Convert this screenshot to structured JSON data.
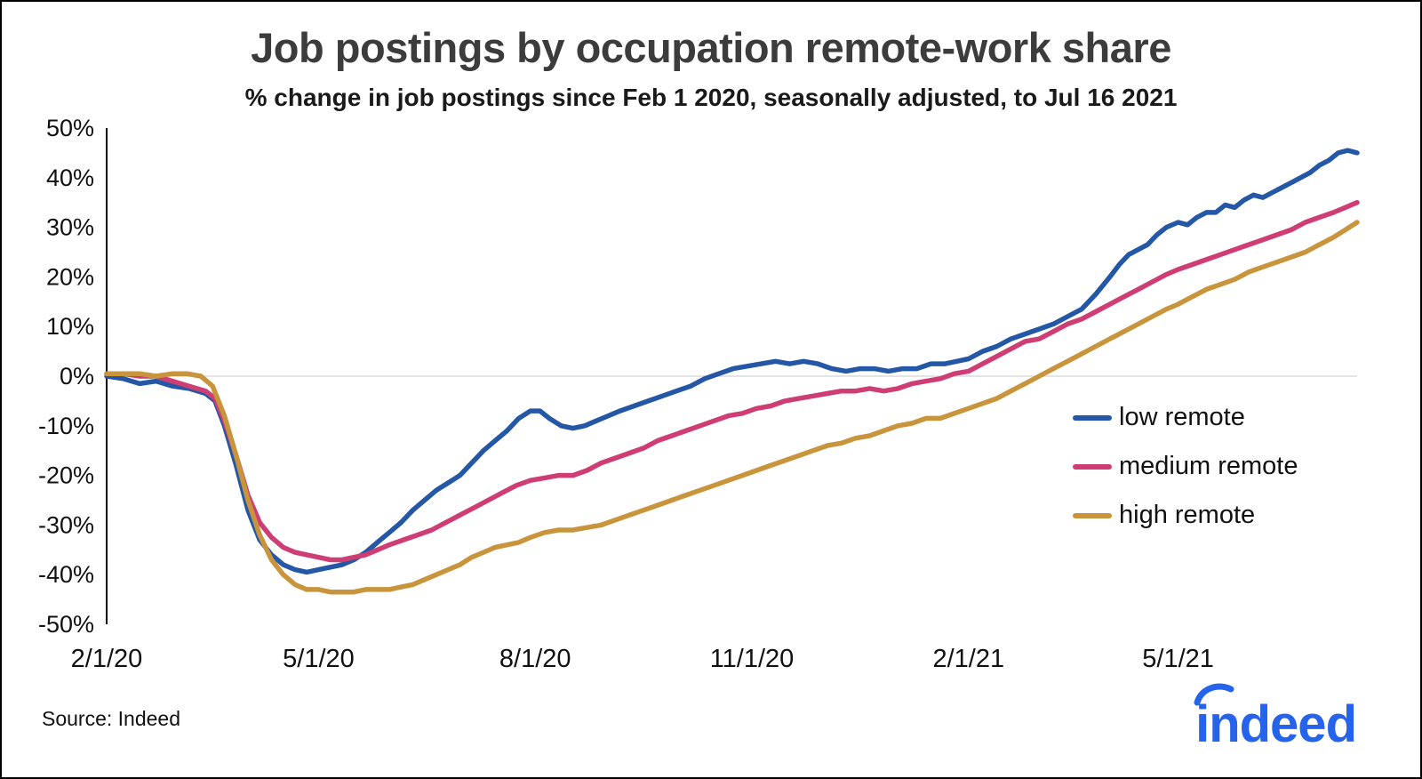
{
  "header": {
    "title": "Job postings by occupation remote-work share",
    "subtitle": "% change in job postings since Feb 1 2020, seasonally adjusted, to Jul 16 2021"
  },
  "chart_data": {
    "type": "line",
    "title": "Job postings by occupation remote-work share",
    "subtitle": "% change in job postings since Feb 1 2020, seasonally adjusted, to Jul 16 2021",
    "xlabel": "",
    "ylabel": "",
    "x_unit": "days since 2020-02-01",
    "xlim": [
      0,
      531
    ],
    "ylim": [
      -50,
      50
    ],
    "grid": "horizontal zero line only",
    "legend_position": "middle-right",
    "x_ticks": [
      {
        "value": 0,
        "label": "2/1/20"
      },
      {
        "value": 90,
        "label": "5/1/20"
      },
      {
        "value": 182,
        "label": "8/1/20"
      },
      {
        "value": 274,
        "label": "11/1/20"
      },
      {
        "value": 366,
        "label": "2/1/21"
      },
      {
        "value": 455,
        "label": "5/1/21"
      }
    ],
    "y_ticks": [
      {
        "value": 50,
        "label": "50%"
      },
      {
        "value": 40,
        "label": "40%"
      },
      {
        "value": 30,
        "label": "30%"
      },
      {
        "value": 20,
        "label": "20%"
      },
      {
        "value": 10,
        "label": "10%"
      },
      {
        "value": 0,
        "label": "0%"
      },
      {
        "value": -10,
        "label": "-10%"
      },
      {
        "value": -20,
        "label": "-20%"
      },
      {
        "value": -30,
        "label": "-30%"
      },
      {
        "value": -40,
        "label": "-40%"
      },
      {
        "value": -50,
        "label": "-50%"
      }
    ],
    "series": [
      {
        "name": "low remote",
        "color": "#2557a7",
        "points": [
          [
            0,
            0
          ],
          [
            7,
            -0.5
          ],
          [
            14,
            -1.5
          ],
          [
            21,
            -1
          ],
          [
            28,
            -2
          ],
          [
            35,
            -2.5
          ],
          [
            42,
            -3.5
          ],
          [
            46,
            -5
          ],
          [
            50,
            -10
          ],
          [
            55,
            -18
          ],
          [
            60,
            -27
          ],
          [
            65,
            -33
          ],
          [
            70,
            -36
          ],
          [
            75,
            -38
          ],
          [
            80,
            -39
          ],
          [
            85,
            -39.5
          ],
          [
            90,
            -39
          ],
          [
            95,
            -38.5
          ],
          [
            100,
            -38
          ],
          [
            105,
            -37
          ],
          [
            110,
            -35.5
          ],
          [
            115,
            -33.5
          ],
          [
            120,
            -31.5
          ],
          [
            125,
            -29.5
          ],
          [
            130,
            -27
          ],
          [
            135,
            -25
          ],
          [
            140,
            -23
          ],
          [
            145,
            -21.5
          ],
          [
            150,
            -20
          ],
          [
            155,
            -17.5
          ],
          [
            160,
            -15
          ],
          [
            165,
            -13
          ],
          [
            170,
            -11
          ],
          [
            175,
            -8.5
          ],
          [
            180,
            -7
          ],
          [
            184,
            -7
          ],
          [
            188,
            -8.5
          ],
          [
            193,
            -10
          ],
          [
            198,
            -10.5
          ],
          [
            203,
            -10
          ],
          [
            208,
            -9
          ],
          [
            213,
            -8
          ],
          [
            218,
            -7
          ],
          [
            224,
            -6
          ],
          [
            230,
            -5
          ],
          [
            236,
            -4
          ],
          [
            242,
            -3
          ],
          [
            248,
            -2
          ],
          [
            254,
            -0.5
          ],
          [
            260,
            0.5
          ],
          [
            266,
            1.5
          ],
          [
            272,
            2
          ],
          [
            278,
            2.5
          ],
          [
            284,
            3
          ],
          [
            290,
            2.5
          ],
          [
            296,
            3
          ],
          [
            302,
            2.5
          ],
          [
            308,
            1.5
          ],
          [
            314,
            1
          ],
          [
            320,
            1.5
          ],
          [
            326,
            1.5
          ],
          [
            332,
            1
          ],
          [
            338,
            1.5
          ],
          [
            344,
            1.5
          ],
          [
            350,
            2.5
          ],
          [
            356,
            2.5
          ],
          [
            361,
            3
          ],
          [
            366,
            3.5
          ],
          [
            372,
            5
          ],
          [
            378,
            6
          ],
          [
            384,
            7.5
          ],
          [
            390,
            8.5
          ],
          [
            396,
            9.5
          ],
          [
            402,
            10.5
          ],
          [
            408,
            12
          ],
          [
            414,
            13.5
          ],
          [
            420,
            16.5
          ],
          [
            426,
            20
          ],
          [
            430,
            22.5
          ],
          [
            434,
            24.5
          ],
          [
            438,
            25.5
          ],
          [
            442,
            26.5
          ],
          [
            446,
            28.5
          ],
          [
            450,
            30
          ],
          [
            455,
            31
          ],
          [
            459,
            30.5
          ],
          [
            463,
            32
          ],
          [
            467,
            33
          ],
          [
            471,
            33
          ],
          [
            475,
            34.5
          ],
          [
            479,
            34
          ],
          [
            483,
            35.5
          ],
          [
            487,
            36.5
          ],
          [
            491,
            36
          ],
          [
            495,
            37
          ],
          [
            499,
            38
          ],
          [
            503,
            39
          ],
          [
            507,
            40
          ],
          [
            511,
            41
          ],
          [
            515,
            42.5
          ],
          [
            519,
            43.5
          ],
          [
            523,
            45
          ],
          [
            527,
            45.5
          ],
          [
            531,
            45
          ]
        ]
      },
      {
        "name": "medium remote",
        "color": "#ce3d73",
        "points": [
          [
            0,
            0.5
          ],
          [
            7,
            0.5
          ],
          [
            14,
            0
          ],
          [
            21,
            0
          ],
          [
            28,
            -1
          ],
          [
            35,
            -2
          ],
          [
            42,
            -3
          ],
          [
            46,
            -4.5
          ],
          [
            50,
            -9
          ],
          [
            55,
            -16
          ],
          [
            60,
            -24
          ],
          [
            65,
            -29.5
          ],
          [
            70,
            -32.5
          ],
          [
            75,
            -34.5
          ],
          [
            80,
            -35.5
          ],
          [
            85,
            -36
          ],
          [
            90,
            -36.5
          ],
          [
            95,
            -37
          ],
          [
            100,
            -37
          ],
          [
            105,
            -36.5
          ],
          [
            110,
            -36
          ],
          [
            115,
            -35
          ],
          [
            120,
            -34
          ],
          [
            126,
            -33
          ],
          [
            132,
            -32
          ],
          [
            138,
            -31
          ],
          [
            144,
            -29.5
          ],
          [
            150,
            -28
          ],
          [
            156,
            -26.5
          ],
          [
            162,
            -25
          ],
          [
            168,
            -23.5
          ],
          [
            174,
            -22
          ],
          [
            180,
            -21
          ],
          [
            186,
            -20.5
          ],
          [
            192,
            -20
          ],
          [
            198,
            -20
          ],
          [
            204,
            -19
          ],
          [
            210,
            -17.5
          ],
          [
            216,
            -16.5
          ],
          [
            222,
            -15.5
          ],
          [
            228,
            -14.5
          ],
          [
            234,
            -13
          ],
          [
            240,
            -12
          ],
          [
            246,
            -11
          ],
          [
            252,
            -10
          ],
          [
            258,
            -9
          ],
          [
            264,
            -8
          ],
          [
            270,
            -7.5
          ],
          [
            276,
            -6.5
          ],
          [
            282,
            -6
          ],
          [
            288,
            -5
          ],
          [
            294,
            -4.5
          ],
          [
            300,
            -4
          ],
          [
            306,
            -3.5
          ],
          [
            312,
            -3
          ],
          [
            318,
            -3
          ],
          [
            324,
            -2.5
          ],
          [
            330,
            -3
          ],
          [
            336,
            -2.5
          ],
          [
            342,
            -1.5
          ],
          [
            348,
            -1
          ],
          [
            354,
            -0.5
          ],
          [
            360,
            0.5
          ],
          [
            366,
            1
          ],
          [
            372,
            2.5
          ],
          [
            378,
            4
          ],
          [
            384,
            5.5
          ],
          [
            390,
            7
          ],
          [
            396,
            7.5
          ],
          [
            402,
            9
          ],
          [
            408,
            10.5
          ],
          [
            414,
            11.5
          ],
          [
            420,
            13
          ],
          [
            426,
            14.5
          ],
          [
            432,
            16
          ],
          [
            438,
            17.5
          ],
          [
            444,
            19
          ],
          [
            450,
            20.5
          ],
          [
            455,
            21.5
          ],
          [
            461,
            22.5
          ],
          [
            467,
            23.5
          ],
          [
            473,
            24.5
          ],
          [
            479,
            25.5
          ],
          [
            485,
            26.5
          ],
          [
            491,
            27.5
          ],
          [
            497,
            28.5
          ],
          [
            503,
            29.5
          ],
          [
            509,
            31
          ],
          [
            515,
            32
          ],
          [
            521,
            33
          ],
          [
            526,
            34
          ],
          [
            531,
            35
          ]
        ]
      },
      {
        "name": "high remote",
        "color": "#c8953c",
        "points": [
          [
            0,
            0.5
          ],
          [
            7,
            0.5
          ],
          [
            14,
            0.5
          ],
          [
            21,
            0
          ],
          [
            28,
            0.5
          ],
          [
            34,
            0.5
          ],
          [
            40,
            0
          ],
          [
            45,
            -2
          ],
          [
            50,
            -8
          ],
          [
            55,
            -16
          ],
          [
            60,
            -25
          ],
          [
            65,
            -32
          ],
          [
            70,
            -37
          ],
          [
            75,
            -40
          ],
          [
            80,
            -42
          ],
          [
            85,
            -43
          ],
          [
            90,
            -43
          ],
          [
            95,
            -43.5
          ],
          [
            100,
            -43.5
          ],
          [
            105,
            -43.5
          ],
          [
            110,
            -43
          ],
          [
            115,
            -43
          ],
          [
            120,
            -43
          ],
          [
            125,
            -42.5
          ],
          [
            130,
            -42
          ],
          [
            135,
            -41
          ],
          [
            140,
            -40
          ],
          [
            145,
            -39
          ],
          [
            150,
            -38
          ],
          [
            155,
            -36.5
          ],
          [
            160,
            -35.5
          ],
          [
            165,
            -34.5
          ],
          [
            170,
            -34
          ],
          [
            175,
            -33.5
          ],
          [
            180,
            -32.5
          ],
          [
            186,
            -31.5
          ],
          [
            192,
            -31
          ],
          [
            198,
            -31
          ],
          [
            204,
            -30.5
          ],
          [
            210,
            -30
          ],
          [
            216,
            -29
          ],
          [
            222,
            -28
          ],
          [
            228,
            -27
          ],
          [
            234,
            -26
          ],
          [
            240,
            -25
          ],
          [
            246,
            -24
          ],
          [
            252,
            -23
          ],
          [
            258,
            -22
          ],
          [
            264,
            -21
          ],
          [
            270,
            -20
          ],
          [
            276,
            -19
          ],
          [
            282,
            -18
          ],
          [
            288,
            -17
          ],
          [
            294,
            -16
          ],
          [
            300,
            -15
          ],
          [
            306,
            -14
          ],
          [
            312,
            -13.5
          ],
          [
            318,
            -12.5
          ],
          [
            324,
            -12
          ],
          [
            330,
            -11
          ],
          [
            336,
            -10
          ],
          [
            342,
            -9.5
          ],
          [
            348,
            -8.5
          ],
          [
            354,
            -8.5
          ],
          [
            360,
            -7.5
          ],
          [
            366,
            -6.5
          ],
          [
            372,
            -5.5
          ],
          [
            378,
            -4.5
          ],
          [
            384,
            -3
          ],
          [
            390,
            -1.5
          ],
          [
            396,
            0
          ],
          [
            402,
            1.5
          ],
          [
            408,
            3
          ],
          [
            414,
            4.5
          ],
          [
            420,
            6
          ],
          [
            426,
            7.5
          ],
          [
            432,
            9
          ],
          [
            438,
            10.5
          ],
          [
            444,
            12
          ],
          [
            450,
            13.5
          ],
          [
            455,
            14.5
          ],
          [
            461,
            16
          ],
          [
            467,
            17.5
          ],
          [
            473,
            18.5
          ],
          [
            479,
            19.5
          ],
          [
            485,
            21
          ],
          [
            491,
            22
          ],
          [
            497,
            23
          ],
          [
            503,
            24
          ],
          [
            509,
            25
          ],
          [
            515,
            26.5
          ],
          [
            521,
            28
          ],
          [
            526,
            29.5
          ],
          [
            531,
            31
          ]
        ]
      }
    ],
    "zero_line_color": "#dcdcdc",
    "axis_line_color": "#000000"
  },
  "footer": {
    "source": "Source: Indeed",
    "logo_text": "indeed",
    "logo_color": "#2563eb"
  }
}
